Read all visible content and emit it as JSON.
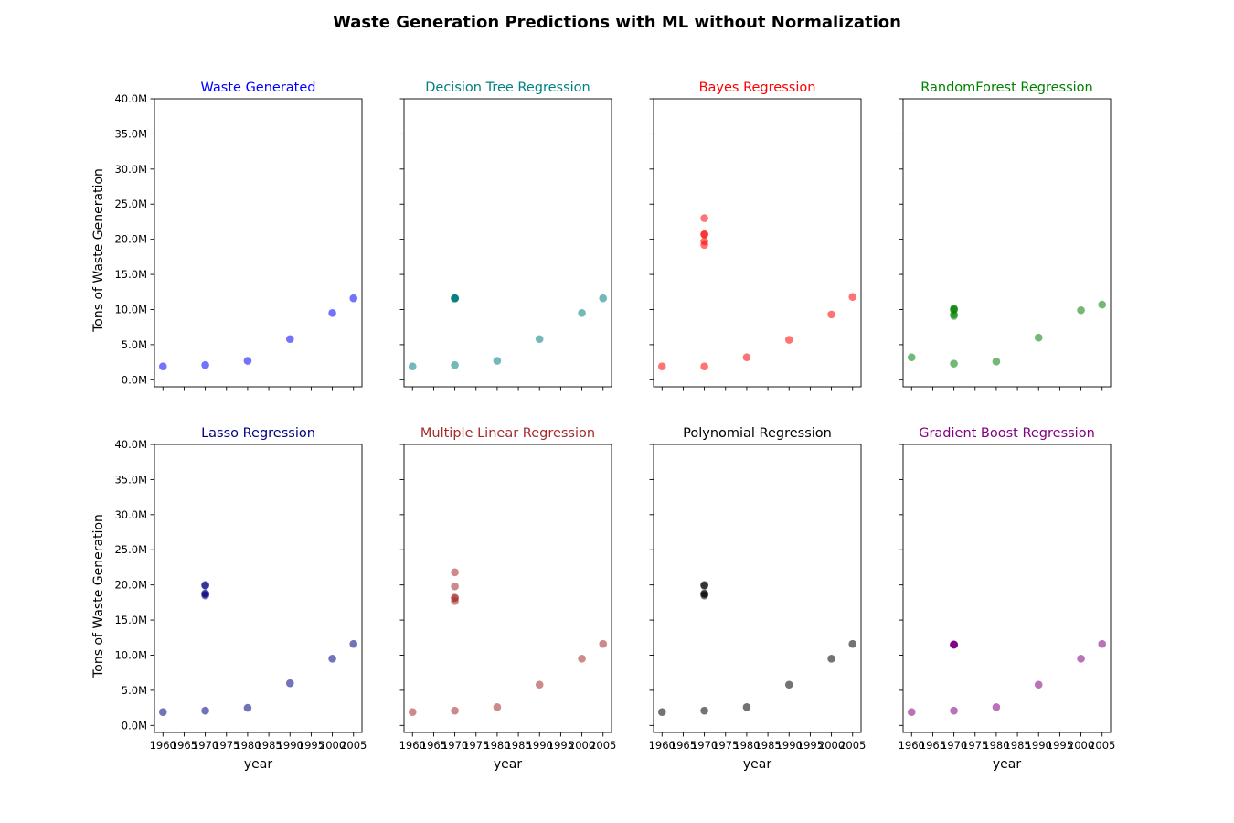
{
  "figure": {
    "title": "Waste Generation Predictions with ML without Normalization"
  },
  "chart_data": [
    {
      "type": "scatter",
      "title": "Waste Generated",
      "title_color": "#0000ff",
      "color": "#0000ff",
      "alpha": 0.55,
      "xlabel": "",
      "ylabel": "Tons of Waste Generation",
      "xlim": [
        1958,
        2007
      ],
      "ylim": [
        -1000000,
        40000000
      ],
      "x": [
        1960,
        1970,
        1980,
        1990,
        2000,
        2005
      ],
      "y": [
        1900000,
        2100000,
        2700000,
        5800000,
        9500000,
        11600000
      ]
    },
    {
      "type": "scatter",
      "title": "Decision Tree Regression",
      "title_color": "#008080",
      "color": "#008080",
      "alpha": 0.55,
      "xlabel": "",
      "ylabel": "",
      "xlim": [
        1958,
        2007
      ],
      "ylim": [
        -1000000,
        40000000
      ],
      "x": [
        1960,
        1970,
        1970,
        1970,
        1970,
        1970,
        1970,
        1980,
        1990,
        2000,
        2005
      ],
      "y": [
        1900000,
        2100000,
        11600000,
        11600000,
        11600000,
        11600000,
        11600000,
        2700000,
        5800000,
        9500000,
        11600000
      ]
    },
    {
      "type": "scatter",
      "title": "Bayes Regression",
      "title_color": "#ff0000",
      "color": "#ff0000",
      "alpha": 0.55,
      "xlabel": "",
      "ylabel": "",
      "xlim": [
        1958,
        2007
      ],
      "ylim": [
        -1000000,
        40000000
      ],
      "x": [
        1960,
        1970,
        1970,
        1970,
        1970,
        1970,
        1970,
        1980,
        1990,
        2000,
        2005
      ],
      "y": [
        1900000,
        1900000,
        19200000,
        19700000,
        20700000,
        20700000,
        23000000,
        3200000,
        5700000,
        9300000,
        11800000
      ]
    },
    {
      "type": "scatter",
      "title": "RandomForest Regression",
      "title_color": "#008000",
      "color": "#008000",
      "alpha": 0.55,
      "xlabel": "",
      "ylabel": "",
      "xlim": [
        1958,
        2007
      ],
      "ylim": [
        -1000000,
        40000000
      ],
      "x": [
        1960,
        1970,
        1970,
        1970,
        1970,
        1970,
        1970,
        1980,
        1990,
        2000,
        2005
      ],
      "y": [
        3200000,
        2300000,
        9100000,
        9300000,
        9900000,
        10100000,
        10100000,
        2600000,
        6000000,
        9900000,
        10700000
      ]
    },
    {
      "type": "scatter",
      "title": "Lasso Regression",
      "title_color": "#000080",
      "color": "#000080",
      "alpha": 0.55,
      "xlabel": "year",
      "ylabel": "Tons of Waste Generation",
      "xlim": [
        1958,
        2007
      ],
      "ylim": [
        -1000000,
        40000000
      ],
      "x": [
        1960,
        1970,
        1970,
        1970,
        1970,
        1970,
        1970,
        1980,
        1990,
        2000,
        2005
      ],
      "y": [
        1900000,
        2100000,
        18500000,
        18700000,
        18800000,
        19900000,
        20000000,
        2500000,
        6000000,
        9500000,
        11600000
      ]
    },
    {
      "type": "scatter",
      "title": "Multiple Linear Regression",
      "title_color": "#a52a2a",
      "color": "#a52a2a",
      "alpha": 0.55,
      "xlabel": "year",
      "ylabel": "",
      "xlim": [
        1958,
        2007
      ],
      "ylim": [
        -1000000,
        40000000
      ],
      "x": [
        1960,
        1970,
        1970,
        1970,
        1970,
        1970,
        1970,
        1980,
        1990,
        2000,
        2005
      ],
      "y": [
        1900000,
        2100000,
        17700000,
        18100000,
        18200000,
        19800000,
        21800000,
        2600000,
        5800000,
        9500000,
        11600000
      ]
    },
    {
      "type": "scatter",
      "title": "Polynomial Regression",
      "title_color": "#000000",
      "color": "#000000",
      "alpha": 0.55,
      "xlabel": "year",
      "ylabel": "",
      "xlim": [
        1958,
        2007
      ],
      "ylim": [
        -1000000,
        40000000
      ],
      "x": [
        1960,
        1970,
        1970,
        1970,
        1970,
        1970,
        1970,
        1980,
        1990,
        2000,
        2005
      ],
      "y": [
        1900000,
        2100000,
        18500000,
        18700000,
        18800000,
        19900000,
        20000000,
        2600000,
        5800000,
        9500000,
        11600000
      ]
    },
    {
      "type": "scatter",
      "title": "Gradient Boost Regression",
      "title_color": "#800080",
      "color": "#800080",
      "alpha": 0.55,
      "xlabel": "year",
      "ylabel": "",
      "xlim": [
        1958,
        2007
      ],
      "ylim": [
        -1000000,
        40000000
      ],
      "x": [
        1960,
        1970,
        1970,
        1970,
        1970,
        1970,
        1970,
        1980,
        1990,
        2000,
        2005
      ],
      "y": [
        1900000,
        2100000,
        11500000,
        11500000,
        11500000,
        11500000,
        11500000,
        2600000,
        5800000,
        9500000,
        11600000
      ]
    }
  ],
  "axes": {
    "y_ticks": [
      0,
      5000000,
      10000000,
      15000000,
      20000000,
      25000000,
      30000000,
      35000000,
      40000000
    ],
    "y_tick_labels": [
      "0.0M",
      "5.0M",
      "10.0M",
      "15.0M",
      "20.0M",
      "25.0M",
      "30.0M",
      "35.0M",
      "40.0M"
    ],
    "x_ticks": [
      1960,
      1965,
      1970,
      1975,
      1980,
      1985,
      1990,
      1995,
      2000,
      2005
    ],
    "x_tick_labels": [
      "1960",
      "1965",
      "1970",
      "1975",
      "1980",
      "1985",
      "1990",
      "1995",
      "2000",
      "2005"
    ]
  }
}
